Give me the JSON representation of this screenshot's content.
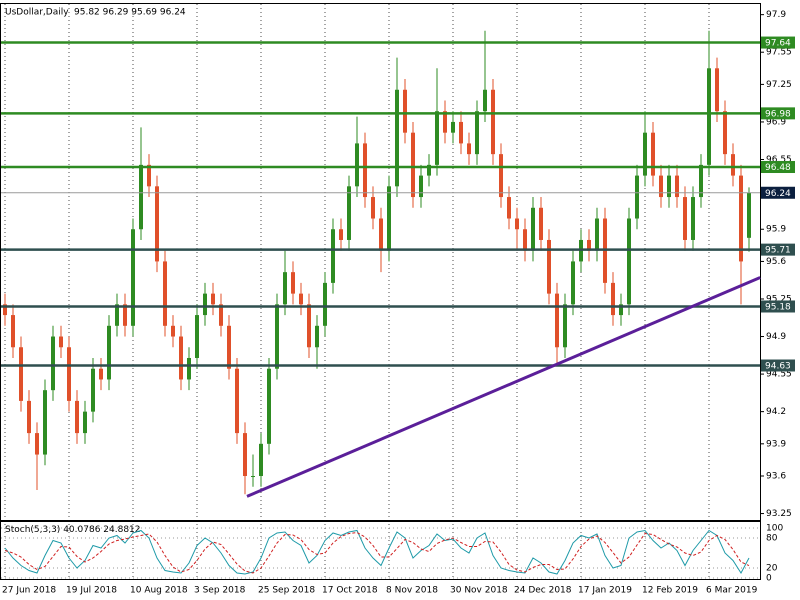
{
  "chart_data": {
    "type": "candlestick",
    "title": "UsDollar,Daily",
    "subtitle": "95.82 96.29 95.69 96.24",
    "categories": [
      "27 Jun 2018",
      null,
      null,
      null,
      null,
      null,
      null,
      null,
      "19 Jul 2018",
      null,
      null,
      null,
      null,
      null,
      null,
      null,
      "10 Aug 2018",
      null,
      null,
      null,
      null,
      null,
      null,
      null,
      "3 Sep 2018",
      null,
      null,
      null,
      null,
      null,
      null,
      null,
      "25 Sep 2018",
      null,
      null,
      null,
      null,
      null,
      null,
      null,
      "17 Oct 2018",
      null,
      null,
      null,
      null,
      null,
      null,
      null,
      "8 Nov 2018",
      null,
      null,
      null,
      null,
      null,
      null,
      null,
      "30 Nov 2018",
      null,
      null,
      null,
      null,
      null,
      null,
      null,
      "24 Dec 2018",
      null,
      null,
      null,
      null,
      null,
      null,
      null,
      "17 Jan 2019",
      null,
      null,
      null,
      null,
      null,
      null,
      null,
      "12 Feb 2019",
      null,
      null,
      null,
      null,
      null,
      null,
      null,
      "6 Mar 2019",
      null,
      null,
      null,
      null,
      null
    ],
    "open": [
      95.2,
      95.1,
      94.8,
      94.3,
      94.0,
      93.8,
      94.4,
      94.9,
      94.8,
      94.3,
      94.0,
      94.2,
      94.6,
      94.5,
      95.0,
      95.2,
      95.0,
      95.9,
      96.5,
      96.3,
      95.6,
      95.0,
      94.9,
      94.5,
      94.7,
      95.1,
      95.3,
      95.2,
      95.0,
      94.6,
      94.0,
      93.6,
      93.6,
      93.9,
      94.6,
      95.2,
      95.5,
      95.3,
      95.2,
      94.8,
      95.0,
      95.4,
      95.9,
      95.8,
      96.3,
      96.7,
      96.2,
      96.0,
      95.7,
      96.3,
      97.2,
      96.8,
      96.2,
      96.4,
      96.5,
      97.0,
      96.8,
      96.9,
      96.7,
      96.6,
      97.0,
      97.2,
      96.6,
      96.2,
      96.0,
      95.9,
      95.7,
      96.1,
      95.8,
      95.3,
      94.8,
      95.2,
      95.6,
      95.8,
      95.7,
      96.0,
      95.4,
      95.1,
      95.2,
      96.0,
      96.4,
      96.8,
      96.4,
      96.2,
      96.4,
      96.2,
      95.8,
      96.2,
      96.5,
      97.4,
      97.0,
      96.6,
      96.4,
      95.82
    ],
    "high": [
      95.3,
      95.2,
      94.9,
      94.4,
      94.1,
      94.5,
      95.0,
      95.0,
      94.9,
      94.4,
      94.3,
      94.7,
      94.7,
      95.1,
      95.3,
      95.3,
      96.0,
      96.85,
      96.6,
      96.4,
      95.7,
      95.1,
      95.0,
      94.8,
      95.2,
      95.4,
      95.4,
      95.3,
      95.1,
      94.7,
      94.1,
      93.8,
      94.0,
      94.7,
      95.3,
      95.7,
      95.6,
      95.4,
      95.3,
      95.1,
      95.5,
      96.0,
      96.0,
      96.4,
      96.95,
      96.8,
      96.3,
      96.1,
      96.4,
      97.5,
      97.3,
      96.9,
      96.5,
      96.6,
      97.4,
      97.1,
      97.0,
      97.0,
      96.8,
      97.1,
      97.75,
      97.3,
      96.7,
      96.3,
      96.1,
      96.0,
      96.2,
      96.2,
      95.9,
      95.4,
      95.3,
      95.7,
      95.9,
      95.9,
      96.1,
      96.1,
      95.5,
      95.3,
      96.1,
      96.5,
      97.0,
      96.9,
      96.5,
      96.5,
      96.5,
      96.3,
      96.3,
      96.6,
      97.75,
      97.5,
      97.1,
      96.7,
      96.5,
      96.29
    ],
    "low": [
      95.0,
      94.7,
      94.2,
      93.9,
      93.47,
      93.7,
      94.3,
      94.7,
      94.2,
      93.9,
      93.9,
      94.1,
      94.4,
      94.4,
      94.9,
      94.9,
      94.9,
      95.8,
      96.2,
      95.5,
      94.9,
      94.8,
      94.4,
      94.4,
      94.6,
      95.0,
      95.1,
      94.9,
      94.5,
      93.9,
      93.43,
      93.5,
      93.5,
      93.8,
      94.5,
      95.1,
      95.2,
      95.1,
      94.7,
      94.6,
      94.9,
      95.3,
      95.7,
      95.7,
      96.2,
      96.1,
      95.9,
      95.5,
      95.6,
      96.2,
      96.7,
      96.1,
      96.1,
      96.3,
      96.4,
      96.7,
      96.7,
      96.6,
      96.5,
      96.5,
      96.9,
      96.5,
      96.1,
      95.9,
      95.7,
      95.6,
      95.6,
      95.7,
      95.2,
      94.63,
      94.7,
      95.1,
      95.5,
      95.6,
      95.6,
      95.3,
      95.0,
      95.0,
      95.1,
      95.9,
      96.3,
      96.3,
      96.1,
      96.1,
      96.1,
      95.7,
      95.7,
      96.1,
      96.4,
      96.9,
      96.5,
      96.3,
      95.2,
      95.69
    ],
    "close": [
      95.1,
      94.8,
      94.3,
      94.0,
      93.8,
      94.4,
      94.9,
      94.8,
      94.3,
      94.0,
      94.2,
      94.6,
      94.5,
      95.0,
      95.2,
      95.0,
      95.9,
      96.5,
      96.3,
      95.6,
      95.0,
      94.9,
      94.5,
      94.7,
      95.1,
      95.3,
      95.2,
      95.0,
      94.6,
      94.0,
      93.6,
      93.6,
      93.9,
      94.6,
      95.2,
      95.5,
      95.3,
      95.2,
      94.8,
      95.0,
      95.4,
      95.9,
      95.8,
      96.3,
      96.7,
      96.2,
      96.0,
      95.7,
      96.3,
      97.2,
      96.8,
      96.2,
      96.4,
      96.5,
      97.0,
      96.8,
      96.9,
      96.7,
      96.6,
      97.0,
      97.2,
      96.6,
      96.2,
      96.0,
      95.9,
      95.7,
      96.1,
      95.8,
      95.3,
      94.8,
      95.2,
      95.6,
      95.8,
      95.7,
      96.0,
      95.4,
      95.1,
      95.2,
      96.0,
      96.4,
      96.8,
      96.4,
      96.2,
      96.4,
      96.2,
      95.8,
      96.2,
      96.5,
      97.4,
      97.0,
      96.6,
      96.4,
      95.6,
      96.24
    ],
    "up_color": "#2e8b22",
    "down_color": "#e0502a",
    "ylim": [
      93.19,
      97.99
    ],
    "yticks": [
      93.25,
      93.6,
      93.9,
      94.2,
      94.55,
      94.9,
      95.25,
      95.6,
      95.9,
      96.25,
      96.55,
      96.9,
      97.25,
      97.55,
      97.9
    ],
    "levels": [
      {
        "value": 97.64,
        "color": "#2e8b22",
        "label_color": "#2e8b22"
      },
      {
        "value": 96.98,
        "color": "#2e8b22",
        "label_color": "#2e8b22"
      },
      {
        "value": 96.48,
        "color": "#2e8b22",
        "label_color": "#2e8b22"
      },
      {
        "value": 96.24,
        "color": "#9a9a9a",
        "label_color": "#0b1f3f"
      },
      {
        "value": 95.71,
        "color": "#2f4f4f",
        "label_color": "#2f4f4f"
      },
      {
        "value": 95.18,
        "color": "#2f4f4f",
        "label_color": "#2f4f4f"
      },
      {
        "value": 94.63,
        "color": "#2f4f4f",
        "label_color": "#2f4f4f"
      }
    ],
    "trendline": {
      "x": [
        30.25,
        94.4
      ],
      "y": [
        93.41,
        95.45
      ],
      "color": "#5b1f99"
    },
    "stoch": {
      "title": "Stoch(5,3,3)",
      "ylim": [
        0,
        100
      ],
      "yticks": [
        0,
        20,
        80,
        100
      ],
      "series": [
        {
          "color": "#1e9aa8",
          "dash": false,
          "values": [
            60,
            40,
            25,
            15,
            10,
            45,
            75,
            70,
            40,
            20,
            35,
            65,
            60,
            80,
            85,
            70,
            90,
            95,
            80,
            40,
            15,
            12,
            10,
            30,
            65,
            80,
            70,
            50,
            25,
            10,
            8,
            12,
            40,
            80,
            90,
            92,
            75,
            65,
            30,
            45,
            75,
            90,
            85,
            92,
            95,
            60,
            40,
            25,
            60,
            92,
            80,
            40,
            55,
            65,
            88,
            75,
            78,
            60,
            50,
            80,
            90,
            45,
            20,
            15,
            12,
            10,
            40,
            30,
            12,
            8,
            35,
            70,
            85,
            80,
            88,
            45,
            20,
            25,
            80,
            92,
            95,
            75,
            60,
            70,
            55,
            25,
            55,
            75,
            95,
            85,
            50,
            35,
            10,
            40.0786
          ]
        },
        {
          "color": "#d02020",
          "dash": true,
          "values": [
            55,
            50,
            42,
            27,
            17,
            23,
            43,
            63,
            62,
            43,
            32,
            40,
            53,
            68,
            75,
            78,
            82,
            85,
            88,
            72,
            45,
            22,
            12,
            17,
            35,
            58,
            72,
            67,
            48,
            28,
            14,
            10,
            20,
            44,
            70,
            87,
            86,
            77,
            57,
            47,
            50,
            70,
            83,
            89,
            91,
            82,
            65,
            42,
            42,
            59,
            77,
            71,
            58,
            53,
            69,
            76,
            80,
            71,
            63,
            63,
            73,
            72,
            52,
            27,
            16,
            12,
            21,
            27,
            27,
            17,
            18,
            38,
            63,
            78,
            84,
            71,
            51,
            30,
            42,
            66,
            89,
            87,
            77,
            68,
            62,
            50,
            45,
            52,
            75,
            85,
            77,
            57,
            32,
            24.8812
          ]
        }
      ]
    }
  }
}
